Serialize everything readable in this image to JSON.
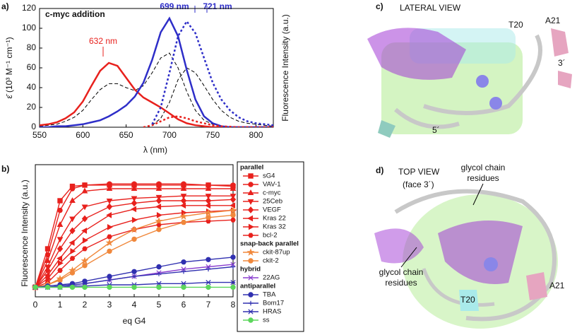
{
  "chart_data": [
    {
      "type": "line",
      "panel_label": "a)",
      "title": "c-myc addition",
      "x_label": "λ (nm)",
      "y_label": "ε̄ (10³ M⁻¹ cm⁻¹)",
      "y2_label": "Fluorescence Intensity (a.u.)",
      "annotations": [
        "632 nm",
        "699 nm",
        "721 nm"
      ],
      "x": [
        550,
        560,
        570,
        580,
        590,
        600,
        610,
        620,
        630,
        640,
        650,
        660,
        670,
        680,
        690,
        700,
        710,
        720,
        730,
        740,
        750,
        760,
        770,
        780,
        790,
        800,
        810,
        820
      ],
      "xlim": [
        550,
        820
      ],
      "xticks": [
        550,
        600,
        650,
        700,
        750,
        800
      ],
      "ylim": [
        0,
        120
      ],
      "yticks": [
        0,
        20,
        40,
        60,
        80,
        100,
        120
      ],
      "y2lim": [
        0,
        120
      ],
      "series": [
        {
          "color": "#000000",
          "dash": "dashed",
          "values": [
            1,
            2,
            3,
            6,
            10,
            17,
            28,
            38,
            44,
            44,
            40,
            37,
            42,
            55,
            70,
            75,
            60,
            36,
            17,
            7,
            3,
            1,
            0,
            0,
            0,
            0,
            0,
            0
          ]
        },
        {
          "color": "#000000",
          "dash": "dashed",
          "axis": "y2",
          "values": [
            null,
            null,
            null,
            null,
            null,
            null,
            null,
            null,
            null,
            null,
            null,
            null,
            null,
            2,
            9,
            25,
            48,
            60,
            55,
            42,
            28,
            17,
            10,
            6,
            4,
            3,
            2,
            1
          ]
        },
        {
          "color": "#e8211d",
          "dash": "solid",
          "values": [
            2,
            3,
            5,
            9,
            15,
            26,
            42,
            57,
            65,
            62,
            50,
            38,
            30,
            25,
            20,
            14,
            8,
            4,
            2,
            1,
            0,
            0,
            0,
            0,
            0,
            0,
            0,
            0
          ]
        },
        {
          "color": "#2e2ec8",
          "dash": "solid",
          "values": [
            0,
            0,
            1,
            1,
            2,
            3,
            5,
            7,
            11,
            16,
            22,
            31,
            45,
            68,
            96,
            110,
            92,
            58,
            28,
            11,
            4,
            1,
            0,
            0,
            0,
            0,
            0,
            0
          ]
        },
        {
          "color": "#e8211d",
          "dash": "dotted",
          "axis": "y2",
          "values": [
            null,
            null,
            null,
            null,
            null,
            null,
            null,
            null,
            null,
            null,
            null,
            null,
            0,
            2,
            6,
            10,
            11,
            9,
            6,
            4,
            2,
            1,
            0.5,
            0,
            0,
            0,
            0,
            0
          ]
        },
        {
          "color": "#2e2ec8",
          "dash": "dotted",
          "axis": "y2",
          "values": [
            null,
            null,
            null,
            null,
            null,
            null,
            null,
            null,
            null,
            null,
            null,
            null,
            null,
            3,
            20,
            55,
            92,
            107,
            95,
            70,
            45,
            28,
            17,
            10,
            6,
            4,
            3,
            2
          ]
        }
      ]
    },
    {
      "type": "line",
      "panel_label": "b)",
      "x_label": "eq G4",
      "y_label": "Fluorescence Intensity (a.u.)",
      "x": [
        0,
        0.5,
        1,
        1.5,
        2,
        3,
        4,
        5,
        6,
        7,
        8
      ],
      "xlim": [
        0,
        8
      ],
      "xticks": [
        0,
        1,
        2,
        3,
        4,
        5,
        6,
        7,
        8
      ],
      "ylim": [
        0,
        110
      ],
      "series": [
        {
          "name": "sG4",
          "group": "parallel",
          "color": "#e8211d",
          "marker": "square",
          "values": [
            8,
            40,
            80,
            92,
            93,
            93,
            93,
            93,
            93,
            93,
            92
          ]
        },
        {
          "name": "VAV-1",
          "group": "parallel",
          "color": "#e8211d",
          "marker": "circle",
          "values": [
            8,
            35,
            72,
            90,
            93,
            94,
            94,
            94,
            94,
            93,
            93
          ]
        },
        {
          "name": "c-myc",
          "group": "parallel",
          "color": "#e8211d",
          "marker": "triangle",
          "values": [
            8,
            30,
            60,
            80,
            88,
            90,
            90,
            90,
            90,
            90,
            90
          ]
        },
        {
          "name": "25Ceb",
          "group": "parallel",
          "color": "#e8211d",
          "marker": "triangle-down",
          "values": [
            8,
            25,
            48,
            65,
            75,
            80,
            82,
            83,
            84,
            84,
            84
          ]
        },
        {
          "name": "VEGF",
          "group": "parallel",
          "color": "#e8211d",
          "marker": "diamond",
          "values": [
            8,
            22,
            40,
            55,
            65,
            75,
            78,
            80,
            80,
            80,
            81
          ]
        },
        {
          "name": "Kras 22",
          "group": "parallel",
          "color": "#e8211d",
          "marker": "triangle-left",
          "values": [
            8,
            18,
            32,
            45,
            55,
            68,
            73,
            75,
            76,
            76,
            76
          ]
        },
        {
          "name": "Kras 32",
          "group": "parallel",
          "color": "#e8211d",
          "marker": "triangle-right",
          "values": [
            8,
            15,
            28,
            38,
            47,
            58,
            64,
            68,
            70,
            71,
            72
          ]
        },
        {
          "name": "bcl-2",
          "group": "parallel",
          "color": "#e8211d",
          "marker": "hexagon",
          "values": [
            8,
            12,
            22,
            32,
            40,
            50,
            56,
            60,
            62,
            63,
            64
          ]
        },
        {
          "name": "ckit-87up",
          "group": "snap-back parallel",
          "color": "#f0883c",
          "marker": "star",
          "values": [
            8,
            10,
            15,
            22,
            30,
            45,
            56,
            63,
            67,
            70,
            72
          ]
        },
        {
          "name": "ckit-2",
          "group": "snap-back parallel",
          "color": "#f0883c",
          "marker": "circle",
          "values": [
            8,
            10,
            14,
            20,
            26,
            38,
            48,
            56,
            62,
            66,
            68
          ]
        },
        {
          "name": "22AG",
          "group": "hybrid",
          "color": "#8a3fcf",
          "marker": "x",
          "values": [
            8,
            8,
            9,
            10,
            11,
            14,
            17,
            20,
            23,
            25,
            27
          ]
        },
        {
          "name": "TBA",
          "group": "antiparallel",
          "color": "#3030b0",
          "marker": "circle",
          "values": [
            8,
            9,
            10,
            11,
            13,
            17,
            21,
            25,
            29,
            31,
            33
          ]
        },
        {
          "name": "Bom17",
          "group": "antiparallel",
          "color": "#3030b0",
          "marker": "plus",
          "values": [
            8,
            8,
            9,
            10,
            11,
            14,
            17,
            19,
            21,
            23,
            25
          ]
        },
        {
          "name": "HRAS",
          "group": "antiparallel",
          "color": "#3030b0",
          "marker": "asterisk",
          "values": [
            8,
            8,
            8,
            9,
            9,
            10,
            10,
            11,
            11,
            12,
            12
          ]
        },
        {
          "name": "ss",
          "group": "antiparallel",
          "color": "#5cd65c",
          "marker": "circle",
          "values": [
            8,
            8,
            8,
            8,
            8,
            8,
            8,
            8,
            8,
            8,
            8
          ]
        }
      ]
    }
  ],
  "panels": {
    "c": {
      "label": "c)",
      "title": "LATERAL VIEW",
      "residues": [
        "T20",
        "A21",
        "3´",
        "5´"
      ]
    },
    "d": {
      "label": "d)",
      "title": "TOP VIEW",
      "subtitle": "(face 3´)",
      "callouts": [
        "glycol chain",
        "residues",
        "glycol chain",
        "residues"
      ],
      "residues": [
        "A21",
        "T20"
      ]
    }
  }
}
